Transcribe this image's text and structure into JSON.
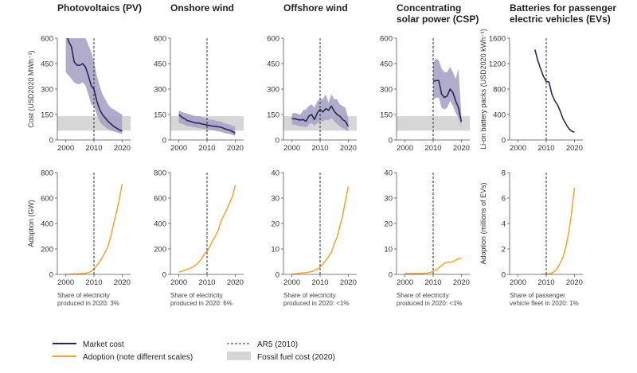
{
  "colors": {
    "market": "#1f2d4f",
    "market_band": "#a8a3c7",
    "adoption": "#f2a52b",
    "fossil": "#d6d6d6",
    "ar5": "#333333"
  },
  "legend": {
    "market_cost": "Market cost",
    "adoption": "Adoption (note different scales)",
    "ar5": "AR5 (2010)",
    "fossil": "Fossil fuel cost (2020)"
  },
  "chart_data": [
    {
      "type": "line",
      "title": [
        "Photovoltaics (PV)"
      ],
      "cost": {
        "ylabel": "Cost (USD2020 MWh⁻¹)",
        "ylim": [
          0,
          600
        ],
        "yticks": [
          "0",
          "150",
          "300",
          "450",
          "600"
        ],
        "fossil_band": [
          55,
          140
        ],
        "x": [
          2000,
          2001,
          2002,
          2003,
          2004,
          2005,
          2006,
          2007,
          2008,
          2009,
          2010,
          2011,
          2012,
          2013,
          2014,
          2015,
          2016,
          2017,
          2018,
          2019,
          2020
        ],
        "market": [
          640,
          580,
          550,
          460,
          440,
          440,
          450,
          430,
          380,
          320,
          300,
          230,
          180,
          150,
          130,
          110,
          95,
          80,
          70,
          60,
          52
        ],
        "band_low": [
          400,
          380,
          360,
          340,
          330,
          330,
          340,
          320,
          270,
          210,
          200,
          150,
          110,
          90,
          75,
          65,
          55,
          50,
          45,
          40,
          35
        ],
        "band_high": [
          640,
          640,
          640,
          620,
          610,
          600,
          640,
          600,
          560,
          520,
          460,
          380,
          320,
          270,
          240,
          210,
          190,
          180,
          170,
          160,
          150
        ]
      },
      "adoption": {
        "ylabel": "Adoption (GW)",
        "ylim": [
          0,
          800
        ],
        "yticks": [
          "0",
          "200",
          "400",
          "600",
          "800"
        ],
        "x": [
          2000,
          2001,
          2002,
          2003,
          2004,
          2005,
          2006,
          2007,
          2008,
          2009,
          2010,
          2011,
          2012,
          2013,
          2014,
          2015,
          2016,
          2017,
          2018,
          2019,
          2020
        ],
        "values": [
          1,
          1,
          2,
          3,
          4,
          5,
          7,
          9,
          15,
          23,
          40,
          70,
          100,
          135,
          175,
          225,
          300,
          400,
          490,
          590,
          710
        ]
      },
      "xticks": [
        "2000",
        "2010",
        "2020"
      ],
      "share": [
        "Share of electricity",
        "produced in 2020: 3%"
      ]
    },
    {
      "type": "line",
      "title": [
        "Onshore wind"
      ],
      "cost": {
        "ylim": [
          0,
          600
        ],
        "yticks": [
          "0",
          "150",
          "300",
          "450",
          "600"
        ],
        "fossil_band": [
          55,
          140
        ],
        "x": [
          2000,
          2001,
          2002,
          2003,
          2004,
          2005,
          2006,
          2007,
          2008,
          2009,
          2010,
          2011,
          2012,
          2013,
          2014,
          2015,
          2016,
          2017,
          2018,
          2019,
          2020
        ],
        "market": [
          150,
          135,
          125,
          115,
          110,
          105,
          100,
          100,
          95,
          92,
          88,
          85,
          82,
          80,
          78,
          75,
          68,
          62,
          58,
          50,
          40
        ],
        "band_low": [
          100,
          95,
          90,
          80,
          80,
          75,
          75,
          70,
          68,
          65,
          62,
          60,
          58,
          55,
          50,
          48,
          42,
          38,
          35,
          30,
          25
        ],
        "band_high": [
          175,
          165,
          160,
          155,
          150,
          145,
          140,
          140,
          138,
          130,
          125,
          120,
          118,
          115,
          112,
          108,
          100,
          95,
          90,
          85,
          80
        ]
      },
      "adoption": {
        "ylim": [
          0,
          800
        ],
        "yticks": [
          "0",
          "200",
          "400",
          "600",
          "800"
        ],
        "x": [
          2000,
          2001,
          2002,
          2003,
          2004,
          2005,
          2006,
          2007,
          2008,
          2009,
          2010,
          2011,
          2012,
          2013,
          2014,
          2015,
          2016,
          2017,
          2018,
          2019,
          2020
        ],
        "values": [
          17,
          24,
          31,
          39,
          48,
          59,
          74,
          94,
          121,
          159,
          181,
          220,
          266,
          300,
          350,
          420,
          465,
          510,
          560,
          610,
          700
        ]
      },
      "xticks": [
        "2000",
        "2010",
        "2020"
      ],
      "share": [
        "Share of electricity",
        "produced in 2020: 6%"
      ]
    },
    {
      "type": "line",
      "title": [
        "Offshore wind"
      ],
      "cost": {
        "ylim": [
          0,
          600
        ],
        "yticks": [
          "0",
          "150",
          "300",
          "450",
          "600"
        ],
        "fossil_band": [
          55,
          140
        ],
        "x": [
          2000,
          2001,
          2002,
          2003,
          2004,
          2005,
          2006,
          2007,
          2008,
          2009,
          2010,
          2011,
          2012,
          2013,
          2014,
          2015,
          2016,
          2017,
          2018,
          2019,
          2020
        ],
        "market": [
          125,
          125,
          120,
          118,
          120,
          110,
          140,
          150,
          120,
          160,
          180,
          165,
          185,
          175,
          200,
          170,
          150,
          140,
          120,
          110,
          80
        ],
        "band_low": [
          90,
          90,
          85,
          80,
          80,
          75,
          90,
          100,
          85,
          100,
          110,
          110,
          120,
          115,
          130,
          110,
          95,
          80,
          70,
          60,
          50
        ],
        "band_high": [
          155,
          160,
          155,
          150,
          175,
          180,
          200,
          210,
          190,
          230,
          240,
          240,
          270,
          220,
          270,
          240,
          240,
          210,
          200,
          190,
          130
        ]
      },
      "adoption": {
        "ylim": [
          0,
          40
        ],
        "yticks": [
          "0",
          "10",
          "20",
          "30",
          "40"
        ],
        "x": [
          2000,
          2001,
          2002,
          2003,
          2004,
          2005,
          2006,
          2007,
          2008,
          2009,
          2010,
          2011,
          2012,
          2013,
          2014,
          2015,
          2016,
          2017,
          2018,
          2019,
          2020
        ],
        "values": [
          0.1,
          0.2,
          0.3,
          0.5,
          0.6,
          0.7,
          0.9,
          1.1,
          1.5,
          2.1,
          3,
          4,
          5.5,
          7,
          8.7,
          12,
          14.5,
          18.8,
          23,
          29,
          34.5
        ]
      },
      "xticks": [
        "2000",
        "2010",
        "2020"
      ],
      "share": [
        "Share of electricity",
        "produced in 2020: <1%"
      ]
    },
    {
      "type": "line",
      "title": [
        "Concentrating",
        "solar power (CSP)"
      ],
      "cost": {
        "ylim": [
          0,
          600
        ],
        "yticks": [
          "0",
          "150",
          "300",
          "450",
          "600"
        ],
        "fossil_band": [
          55,
          140
        ],
        "x": [
          2010,
          2011,
          2012,
          2013,
          2014,
          2015,
          2016,
          2017,
          2018,
          2019,
          2020
        ],
        "market": [
          345,
          350,
          350,
          270,
          250,
          260,
          300,
          280,
          230,
          190,
          108
        ],
        "band_low": [
          240,
          250,
          250,
          190,
          180,
          190,
          230,
          200,
          160,
          130,
          80
        ],
        "band_high": [
          455,
          480,
          470,
          420,
          400,
          400,
          430,
          400,
          360,
          420,
          145
        ]
      },
      "adoption": {
        "ylim": [
          0,
          40
        ],
        "yticks": [
          "0",
          "10",
          "20",
          "30",
          "40"
        ],
        "x": [
          2000,
          2001,
          2002,
          2003,
          2004,
          2005,
          2006,
          2007,
          2008,
          2009,
          2010,
          2011,
          2012,
          2013,
          2014,
          2015,
          2016,
          2017,
          2018,
          2019,
          2020
        ],
        "values": [
          0.35,
          0.35,
          0.35,
          0.35,
          0.35,
          0.35,
          0.4,
          0.45,
          0.5,
          0.7,
          1.3,
          1.7,
          2.6,
          3.5,
          4.4,
          4.7,
          4.8,
          5,
          5.6,
          6.2,
          6.4
        ]
      },
      "xticks": [
        "2000",
        "2010",
        "2020"
      ],
      "share": [
        "Share of electricity",
        "produced in 2020: <1%"
      ]
    },
    {
      "type": "line",
      "title": [
        "Batteries for passenger",
        "electric vehicles (EVs)"
      ],
      "cost": {
        "ylabel": "Li-on battery packs (USD2020 kWh⁻¹)",
        "ylim": [
          0,
          1600
        ],
        "yticks": [
          "0",
          "400",
          "800",
          "1200",
          "1600"
        ],
        "x": [
          2006,
          2007,
          2008,
          2009,
          2010,
          2011,
          2012,
          2013,
          2014,
          2015,
          2016,
          2017,
          2018,
          2019,
          2020
        ],
        "market": [
          1420,
          1250,
          1120,
          1000,
          920,
          910,
          720,
          620,
          550,
          450,
          330,
          250,
          180,
          140,
          120
        ]
      },
      "adoption": {
        "ylabel": "Adoption (millions of EVs)",
        "ylim": [
          0,
          8
        ],
        "yticks": [
          "0",
          "2",
          "4",
          "6",
          "8"
        ],
        "x": [
          2008,
          2009,
          2010,
          2011,
          2012,
          2013,
          2014,
          2015,
          2016,
          2017,
          2018,
          2019,
          2020
        ],
        "values": [
          0,
          0.01,
          0.02,
          0.04,
          0.1,
          0.25,
          0.5,
          0.9,
          1.4,
          2.2,
          3.3,
          4.8,
          6.8
        ]
      },
      "xticks": [
        "2000",
        "2010",
        "2020"
      ],
      "share": [
        "Share of passenger",
        "vehicle fleet in 2020: 1%"
      ]
    }
  ]
}
